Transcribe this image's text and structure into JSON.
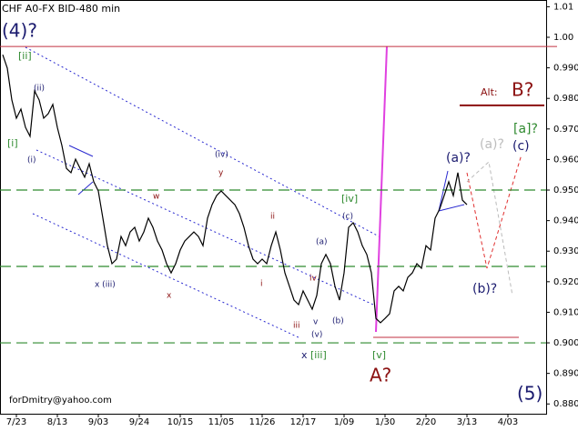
{
  "chart_data": {
    "type": "line",
    "title": "CHF A0-FX BID-480 min",
    "annotations": [
      "forDmitry@yahoo.com",
      "(4)?",
      "[ii]",
      "(ii)",
      "[i]",
      "(i)",
      "(iv)",
      "y",
      "w",
      "ii",
      "i",
      "x",
      "x (iii)",
      "iii",
      "(v)",
      "x",
      "[iii]",
      "v",
      "iv",
      "(a)",
      "(b)",
      "(c)",
      "[iv]",
      "[v]",
      "A?",
      "Alt:",
      "B?",
      "[a]?",
      "(a)?",
      "(c)",
      "(a)?",
      "(b)?",
      "(5)"
    ],
    "categories": [
      null,
      null,
      null,
      "7/23",
      null,
      null,
      null,
      null,
      null,
      null,
      null,
      null,
      "8/13",
      null,
      null,
      null,
      null,
      null,
      null,
      null,
      null,
      "9/03",
      null,
      null,
      null,
      null,
      null,
      null,
      null,
      null,
      "9/24",
      null,
      null,
      null,
      null,
      null,
      null,
      null,
      null,
      "10/15",
      null,
      null,
      null,
      null,
      null,
      null,
      null,
      null,
      "11/05",
      null,
      null,
      null,
      null,
      null,
      null,
      null,
      null,
      "11/26",
      null,
      null,
      null,
      null,
      null,
      null,
      null,
      null,
      "12/17",
      null,
      null,
      null,
      null,
      null,
      null,
      null,
      null,
      "1/09",
      null,
      null,
      null,
      null,
      null,
      null,
      null,
      null,
      "1/30",
      null,
      null,
      null,
      null,
      null,
      null,
      null,
      null,
      "2/20",
      null,
      null,
      null,
      null,
      null,
      null,
      null,
      null,
      "3/13",
      null,
      null,
      null,
      null,
      null,
      null,
      null,
      null,
      "4/03",
      null,
      null,
      null,
      null,
      null,
      null,
      null,
      null
    ],
    "series": [
      {
        "name": "CHF A0-FX",
        "color": "#000000",
        "values": [
          0.9943,
          0.9899,
          0.9795,
          0.9735,
          0.9765,
          0.9705,
          0.9676,
          0.9824,
          0.9795,
          0.9735,
          0.975,
          0.978,
          0.9705,
          0.9646,
          0.9571,
          0.9557,
          0.9601,
          0.9571,
          0.9542,
          0.9586,
          0.9527,
          0.9497,
          0.9408,
          0.9318,
          0.9259,
          0.9274,
          0.9348,
          0.9318,
          0.9363,
          0.9378,
          0.9333,
          0.9363,
          0.9408,
          0.9378,
          0.9333,
          0.9304,
          0.9259,
          0.9229,
          0.9259,
          0.9304,
          0.9333,
          0.9348,
          0.9363,
          0.9348,
          0.9318,
          0.9408,
          0.9452,
          0.9482,
          0.9497,
          0.9482,
          0.9467,
          0.9452,
          0.9423,
          0.9378,
          0.9318,
          0.9274,
          0.9259,
          0.9274,
          0.9259,
          0.9318,
          0.9363,
          0.9304,
          0.9229,
          0.9185,
          0.914,
          0.9125,
          0.917,
          0.914,
          0.911,
          0.9155,
          0.9259,
          0.9289,
          0.9259,
          0.9185,
          0.914,
          0.9229,
          0.9378,
          0.9393,
          0.9363,
          0.9318,
          0.9289,
          0.9229,
          0.908,
          0.9066,
          0.908,
          0.9095,
          0.917,
          0.9185,
          0.917,
          0.9214,
          0.9229,
          0.9259,
          0.9244,
          0.9318,
          0.9304,
          0.9408,
          0.9438,
          0.9482,
          0.9527,
          0.9482,
          0.9557,
          0.9467,
          0.9452,
          null,
          null,
          null,
          null,
          null,
          null,
          null,
          null,
          null,
          null,
          null,
          null,
          null,
          null,
          null,
          null,
          null
        ]
      }
    ],
    "levels": [
      {
        "value": 0.95,
        "color": "#2f8a2f",
        "dash": true
      },
      {
        "value": 0.925,
        "color": "#2f8a2f",
        "dash": true
      },
      {
        "value": 0.9,
        "color": "#2f8a2f",
        "dash": true
      },
      {
        "value": 0.997,
        "color": "#c03040",
        "dash": false
      },
      {
        "value": 0.9018,
        "color": "#c03040",
        "dash": false
      },
      {
        "value": 0.9777,
        "color": "#8b1010",
        "dash": false
      }
    ],
    "ylim": [
      0.8768,
      1.0122
    ],
    "yticks": [
      {
        "value": 0.88,
        "label": "0.880"
      },
      {
        "value": 0.89,
        "label": "0.890"
      },
      {
        "value": 0.9,
        "label": "0.900"
      },
      {
        "value": 0.91,
        "label": "0.910"
      },
      {
        "value": 0.92,
        "label": "0.920"
      },
      {
        "value": 0.93,
        "label": "0.930"
      },
      {
        "value": 0.94,
        "label": "0.940"
      },
      {
        "value": 0.95,
        "label": "0.950"
      },
      {
        "value": 0.96,
        "label": "0.960"
      },
      {
        "value": 0.97,
        "label": "0.970"
      },
      {
        "value": 0.98,
        "label": "0.980"
      },
      {
        "value": 0.99,
        "label": "0.990"
      },
      {
        "value": 1.0,
        "label": "1.00"
      },
      {
        "value": 1.01,
        "label": "1.01"
      }
    ]
  }
}
